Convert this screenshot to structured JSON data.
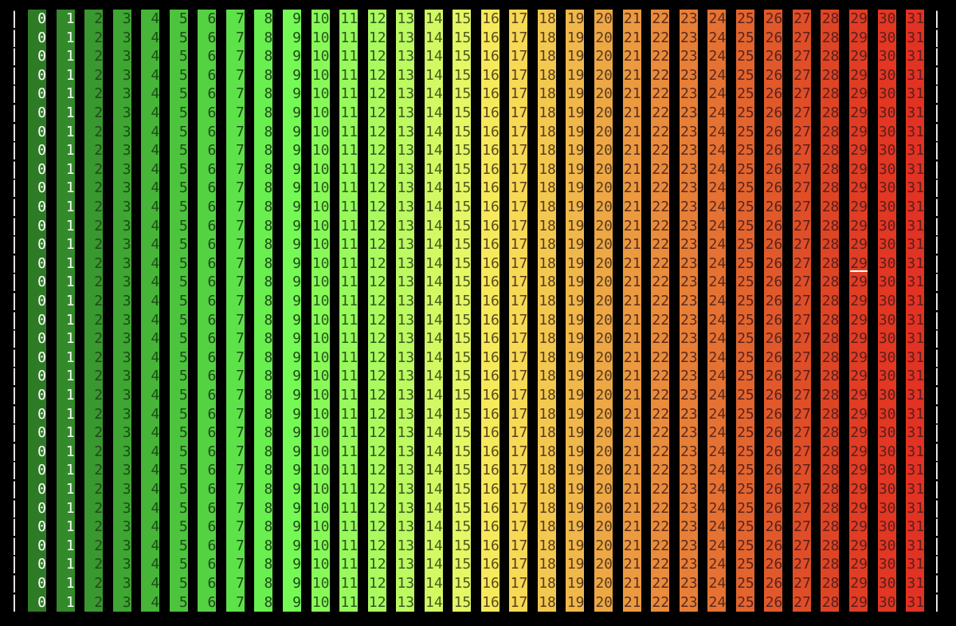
{
  "terminal": {
    "border_left": "|",
    "border_right": "|",
    "row_count": 32,
    "columns": [
      {
        "label": "0",
        "bg": "#2e7b26",
        "fg": "#ffffff"
      },
      {
        "label": "1",
        "bg": "#338a2a",
        "fg": "#ffffff"
      },
      {
        "label": "2",
        "bg": "#39982f",
        "fg": "#1e4a1a"
      },
      {
        "label": "3",
        "bg": "#3fa533",
        "fg": "#1e4a1a"
      },
      {
        "label": "4",
        "bg": "#46b538",
        "fg": "#1e4a1a"
      },
      {
        "label": "5",
        "bg": "#4dc43d",
        "fg": "#1e4a1a"
      },
      {
        "label": "6",
        "bg": "#55d243",
        "fg": "#1e4a1a"
      },
      {
        "label": "7",
        "bg": "#5ee249",
        "fg": "#1e4a1a"
      },
      {
        "label": "8",
        "bg": "#69ef4f",
        "fg": "#1e4a1a"
      },
      {
        "label": "9",
        "bg": "#75fa55",
        "fg": "#1e4a1a"
      },
      {
        "label": "10",
        "bg": "#88fa58",
        "fg": "#2a5a1e"
      },
      {
        "label": "11",
        "bg": "#98f95c",
        "fg": "#2a5a1e"
      },
      {
        "label": "12",
        "bg": "#aaf95f",
        "fg": "#2a5a1e"
      },
      {
        "label": "13",
        "bg": "#bdf962",
        "fg": "#3a5a1e"
      },
      {
        "label": "14",
        "bg": "#d2f864",
        "fg": "#4a5a1e"
      },
      {
        "label": "15",
        "bg": "#e6f766",
        "fg": "#4a5a1e"
      },
      {
        "label": "16",
        "bg": "#f6e95c",
        "fg": "#5a4a1e"
      },
      {
        "label": "17",
        "bg": "#f6d955",
        "fg": "#5a3e1e"
      },
      {
        "label": "18",
        "bg": "#f3c850",
        "fg": "#5a3e1e"
      },
      {
        "label": "19",
        "bg": "#f0b84b",
        "fg": "#5a3a1e"
      },
      {
        "label": "20",
        "bg": "#eda845",
        "fg": "#5a3a1e"
      },
      {
        "label": "21",
        "bg": "#eb9a40",
        "fg": "#5a2e1e"
      },
      {
        "label": "22",
        "bg": "#e98c3b",
        "fg": "#5a2a1e"
      },
      {
        "label": "23",
        "bg": "#e77f37",
        "fg": "#5a2a1e"
      },
      {
        "label": "24",
        "bg": "#e57232",
        "fg": "#5a2a1e"
      },
      {
        "label": "25",
        "bg": "#e3652e",
        "fg": "#5a221e"
      },
      {
        "label": "26",
        "bg": "#e1592a",
        "fg": "#5a221e"
      },
      {
        "label": "27",
        "bg": "#e04e27",
        "fg": "#5a1e1e"
      },
      {
        "label": "28",
        "bg": "#df4525",
        "fg": "#5a1e1e"
      },
      {
        "label": "29",
        "bg": "#e03d24",
        "fg": "#5a1e1e"
      },
      {
        "label": "30",
        "bg": "#e13723",
        "fg": "#5a1e1e"
      },
      {
        "label": "31",
        "bg": "#e23223",
        "fg": "#5a1e1e"
      }
    ],
    "cursor": {
      "row": 13,
      "column": 29
    }
  }
}
